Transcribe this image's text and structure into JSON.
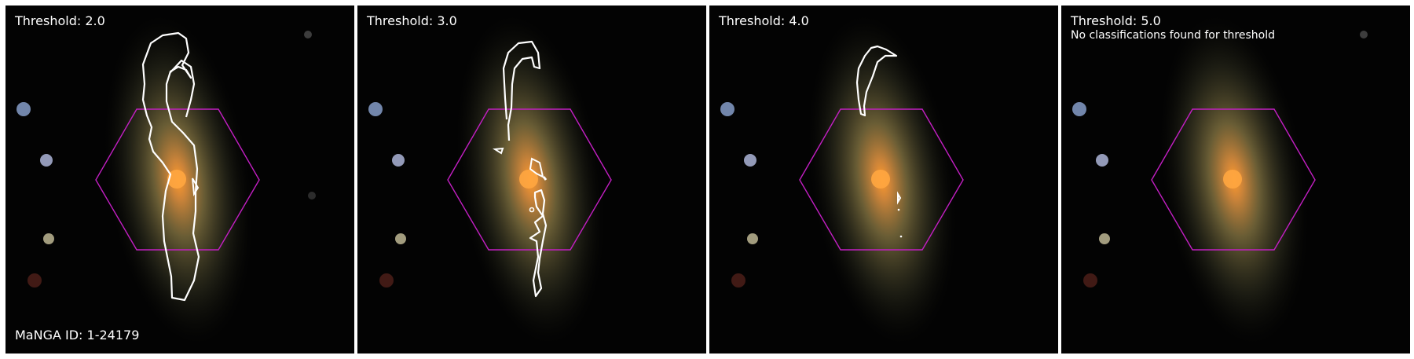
{
  "manga_id": "MaNGA ID: 1-24179",
  "colors": {
    "hexagon": "#c21fc2",
    "contour": "#ffffff",
    "background": "#030303",
    "galaxy_core": "#ff8a2a"
  },
  "panels": [
    {
      "threshold_label": "Threshold: 2.0",
      "note": ""
    },
    {
      "threshold_label": "Threshold: 3.0",
      "note": ""
    },
    {
      "threshold_label": "Threshold: 4.0",
      "note": ""
    },
    {
      "threshold_label": "Threshold: 5.0",
      "note": "No classifications found for threshold"
    }
  ]
}
